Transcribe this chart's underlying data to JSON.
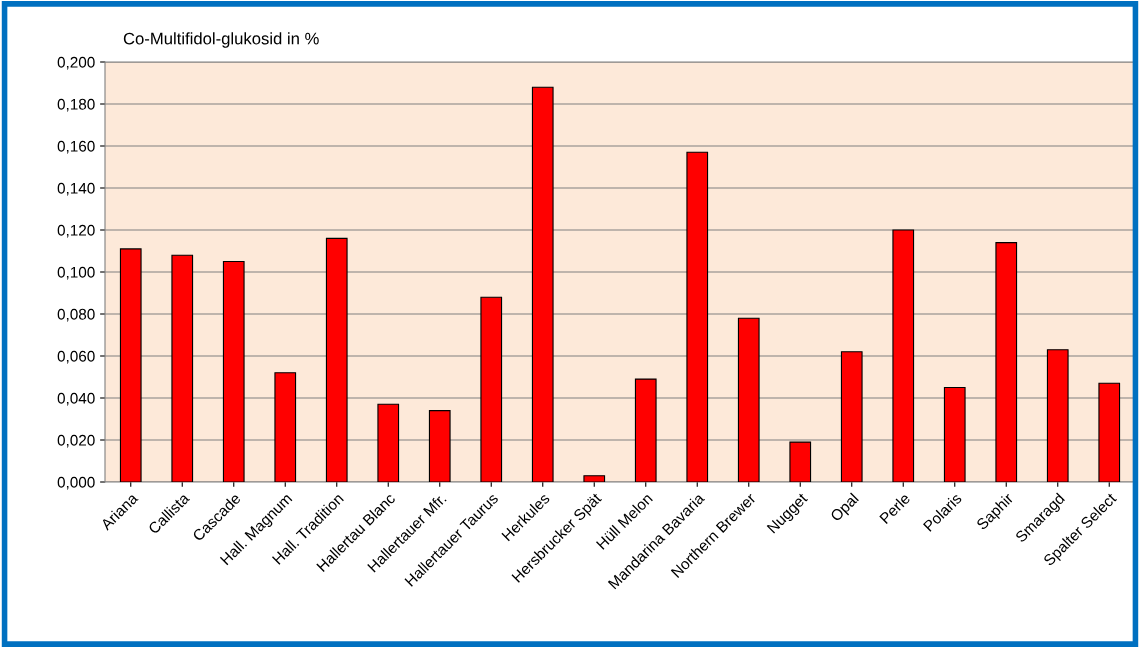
{
  "chart_data": {
    "type": "bar",
    "title": "Co-Multifidol-glukosid in %",
    "categories": [
      "Ariana",
      "Callista",
      "Cascade",
      "Hall. Magnum",
      "Hall. Tradition",
      "Hallertau Blanc",
      "Hallertauer Mfr.",
      "Hallertauer Taurus",
      "Herkules",
      "Hersbrucker Spät",
      "Hüll Melon",
      "Mandarina Bavaria",
      "Northern Brewer",
      "Nugget",
      "Opal",
      "Perle",
      "Polaris",
      "Saphir",
      "Smaragd",
      "Spalter Select"
    ],
    "values": [
      0.111,
      0.108,
      0.105,
      0.052,
      0.116,
      0.037,
      0.034,
      0.088,
      0.188,
      0.003,
      0.049,
      0.157,
      0.078,
      0.019,
      0.062,
      0.12,
      0.045,
      0.114,
      0.063,
      0.047
    ],
    "color": "#ff0000",
    "ylim": [
      0,
      0.2
    ],
    "yticks": [
      {
        "value": 0,
        "label": "0,000"
      },
      {
        "value": 0.02,
        "label": "0,020"
      },
      {
        "value": 0.04,
        "label": "0,040"
      },
      {
        "value": 0.06,
        "label": "0,060"
      },
      {
        "value": 0.08,
        "label": "0,080"
      },
      {
        "value": 0.1,
        "label": "0,100"
      },
      {
        "value": 0.12,
        "label": "0,120"
      },
      {
        "value": 0.14,
        "label": "0,140"
      },
      {
        "value": 0.16,
        "label": "0,160"
      },
      {
        "value": 0.18,
        "label": "0,180"
      },
      {
        "value": 0.2,
        "label": "0,200"
      }
    ],
    "grid": "y"
  }
}
